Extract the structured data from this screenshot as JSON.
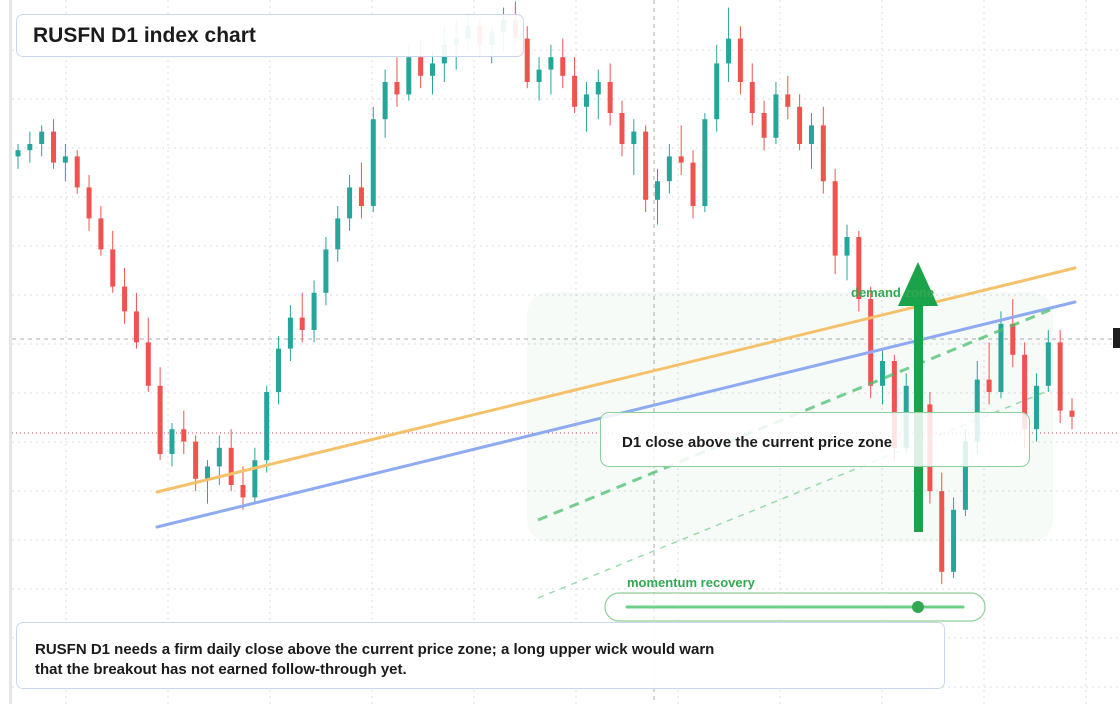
{
  "title": "RUSFN D1 index chart",
  "chart_data": {
    "type": "candlestick",
    "title": "RUSFN D1 index chart",
    "timeframe": "D1",
    "ylim": [
      0,
      100
    ],
    "x_count": 90,
    "candles": [
      [
        78,
        80,
        76,
        79
      ],
      [
        79,
        82,
        77,
        80
      ],
      [
        80,
        83,
        78,
        82
      ],
      [
        82,
        84,
        76,
        77
      ],
      [
        77,
        80,
        74,
        78
      ],
      [
        78,
        79,
        72,
        73
      ],
      [
        73,
        75,
        66,
        68
      ],
      [
        68,
        70,
        62,
        63
      ],
      [
        63,
        66,
        56,
        57
      ],
      [
        57,
        60,
        51,
        53
      ],
      [
        53,
        56,
        47,
        48
      ],
      [
        48,
        52,
        40,
        41
      ],
      [
        41,
        44,
        29,
        30
      ],
      [
        30,
        35,
        28,
        34
      ],
      [
        34,
        37,
        30,
        32
      ],
      [
        32,
        33,
        24,
        26
      ],
      [
        26,
        29,
        22,
        28
      ],
      [
        28,
        33,
        25,
        31
      ],
      [
        31,
        34,
        24,
        25
      ],
      [
        25,
        28,
        21,
        23
      ],
      [
        23,
        31,
        22,
        29
      ],
      [
        29,
        41,
        27,
        40
      ],
      [
        40,
        49,
        38,
        47
      ],
      [
        47,
        54,
        45,
        52
      ],
      [
        52,
        56,
        48,
        50
      ],
      [
        50,
        58,
        48,
        56
      ],
      [
        56,
        65,
        54,
        63
      ],
      [
        63,
        70,
        61,
        68
      ],
      [
        68,
        75,
        66,
        73
      ],
      [
        73,
        77,
        68,
        70
      ],
      [
        70,
        86,
        69,
        84
      ],
      [
        84,
        92,
        81,
        90
      ],
      [
        90,
        94,
        86,
        88
      ],
      [
        88,
        96,
        87,
        94
      ],
      [
        94,
        97,
        89,
        91
      ],
      [
        91,
        95,
        88,
        93
      ],
      [
        93,
        99,
        90,
        96
      ],
      [
        96,
        100,
        92,
        97
      ],
      [
        97,
        101,
        95,
        99
      ],
      [
        99,
        100,
        94,
        96
      ],
      [
        96,
        99,
        93,
        98
      ],
      [
        98,
        102,
        95,
        100
      ],
      [
        100,
        103,
        96,
        97
      ],
      [
        97,
        99,
        89,
        90
      ],
      [
        90,
        94,
        87,
        92
      ],
      [
        92,
        96,
        88,
        94
      ],
      [
        94,
        97,
        89,
        91
      ],
      [
        91,
        94,
        85,
        86
      ],
      [
        86,
        90,
        82,
        88
      ],
      [
        88,
        92,
        84,
        90
      ],
      [
        90,
        93,
        83,
        85
      ],
      [
        85,
        87,
        78,
        80
      ],
      [
        80,
        84,
        75,
        82
      ],
      [
        82,
        83,
        69,
        71
      ],
      [
        71,
        76,
        67,
        74
      ],
      [
        74,
        80,
        72,
        78
      ],
      [
        78,
        83,
        75,
        77
      ],
      [
        77,
        79,
        68,
        70
      ],
      [
        70,
        85,
        69,
        84
      ],
      [
        84,
        96,
        82,
        93
      ],
      [
        93,
        102,
        90,
        97
      ],
      [
        97,
        99,
        88,
        90
      ],
      [
        90,
        93,
        83,
        85
      ],
      [
        85,
        87,
        79,
        81
      ],
      [
        81,
        90,
        80,
        88
      ],
      [
        88,
        91,
        84,
        86
      ],
      [
        86,
        88,
        79,
        80
      ],
      [
        80,
        85,
        76,
        83
      ],
      [
        83,
        86,
        72,
        74
      ],
      [
        74,
        76,
        59,
        62
      ],
      [
        62,
        67,
        58,
        65
      ],
      [
        65,
        66,
        53,
        55
      ],
      [
        55,
        57,
        39,
        41
      ],
      [
        41,
        47,
        38,
        45
      ],
      [
        45,
        46,
        29,
        31
      ],
      [
        31,
        43,
        30,
        41
      ],
      [
        41,
        46,
        36,
        38
      ],
      [
        38,
        40,
        22,
        24
      ],
      [
        24,
        27,
        9,
        11
      ],
      [
        11,
        23,
        10,
        21
      ],
      [
        21,
        34,
        20,
        32
      ],
      [
        32,
        45,
        30,
        42
      ],
      [
        42,
        48,
        38,
        40
      ],
      [
        40,
        53,
        39,
        51
      ],
      [
        51,
        55,
        44,
        46
      ],
      [
        46,
        48,
        31,
        34
      ],
      [
        34,
        43,
        32,
        41
      ],
      [
        41,
        50,
        40,
        48
      ],
      [
        48,
        50,
        35,
        37
      ],
      [
        37,
        39,
        34,
        36
      ]
    ],
    "zones": [
      {
        "label": "demand zone",
        "color": "#33a853"
      },
      {
        "label": "momentum recovery",
        "color": "#33a853"
      }
    ],
    "annotations": [
      "D1 close above the current price zone",
      "RUSFN D1 needs a firm daily close above the current price zone; a long upper wick would warn that the breakout has not earned follow-through yet."
    ],
    "colors": {
      "up": "#26a69a",
      "down": "#ef5350",
      "trend_orange": "#f5c26b",
      "trend_blue": "#8eaaf0",
      "accent_green": "#1aa34a"
    },
    "grid": true
  },
  "labels": {
    "demand_zone": "demand zone",
    "momentum": "momentum recovery",
    "callout": "D1 close above the current price zone",
    "note_line1": "RUSFN D1 needs a firm daily close above the current price zone; a long upper wick would warn",
    "note_line2": "that the breakout has not earned follow-through yet."
  }
}
